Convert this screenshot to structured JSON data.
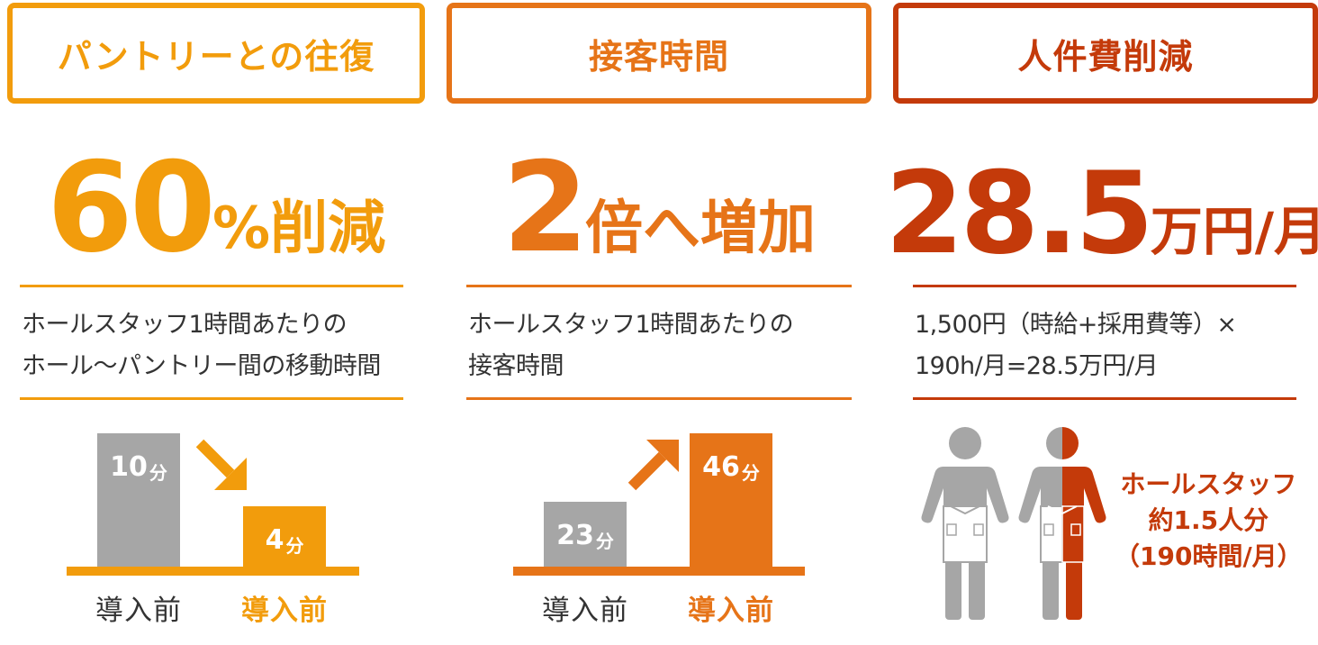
{
  "colors": {
    "amber": "#f29c0c",
    "orange": "#e67418",
    "rust": "#c43a0a",
    "gray": "#a6a6a6",
    "dark_text": "#333333"
  },
  "panels": [
    {
      "title": "パントリーとの往復",
      "big_number": "60",
      "big_unit": "%削減",
      "desc_lines": [
        "ホールスタッフ1時間あたりの",
        "ホール～パントリー間の移動時間"
      ],
      "chart": {
        "type": "bar",
        "arrow": "down",
        "categories": [
          "導入前",
          "導入前"
        ],
        "values": [
          10,
          4
        ],
        "value_labels": [
          "10",
          "4"
        ],
        "unit": "分"
      }
    },
    {
      "title": "接客時間",
      "big_number": "2",
      "big_unit": "倍へ増加",
      "desc_lines": [
        "ホールスタッフ1時間あたりの",
        "接客時間"
      ],
      "chart": {
        "type": "bar",
        "arrow": "up",
        "categories": [
          "導入前",
          "導入前"
        ],
        "values": [
          23,
          46
        ],
        "value_labels": [
          "23",
          "46"
        ],
        "unit": "分"
      }
    },
    {
      "title": "人件費削減",
      "big_number": "28.5",
      "big_unit": "万円/月",
      "desc_lines": [
        "1,500円（時給+採用費等）×",
        "190h/月=28.5万円/月"
      ],
      "staff_note_lines": [
        "ホールスタッフ",
        "約1.5人分",
        "（190時間/月）"
      ],
      "icons": [
        "staff-person-icon",
        "half-staff-person-icon"
      ]
    }
  ]
}
